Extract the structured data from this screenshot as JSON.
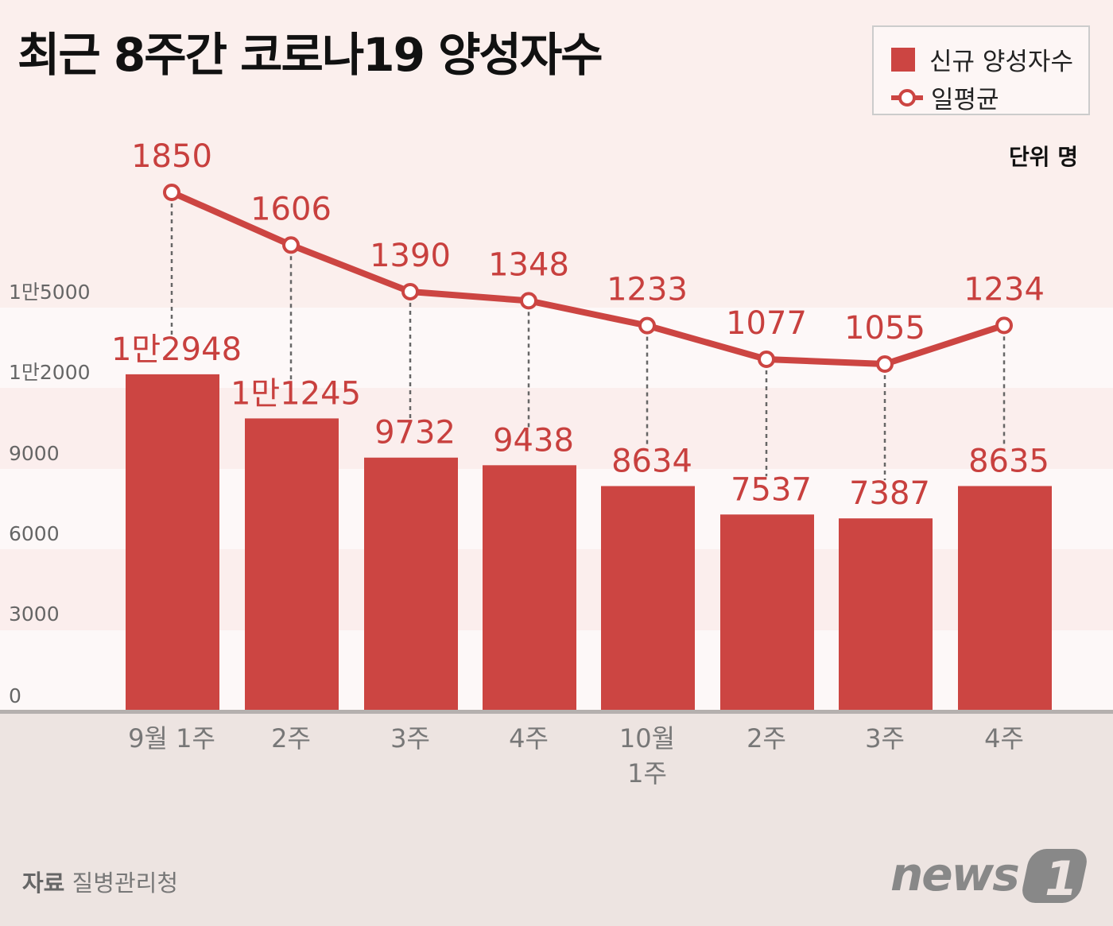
{
  "title": "최근 8주간 코로나19 양성자수",
  "unit_label": "단위 명",
  "source_label": "자료",
  "source_name": "질병관리청",
  "logo_text": "news1",
  "colors": {
    "bar": "#cc4542",
    "line": "#cc4542",
    "label": "#c8403e",
    "axis_text": "#666666"
  },
  "chart_data": {
    "type": "bar+line",
    "categories": [
      [
        "9월 1주"
      ],
      [
        "2주"
      ],
      [
        "3주"
      ],
      [
        "4주"
      ],
      [
        "10월",
        "1주"
      ],
      [
        "2주"
      ],
      [
        "3주"
      ],
      [
        "4주"
      ]
    ],
    "series": [
      {
        "name": "신규 양성자수",
        "type": "bar",
        "values": [
          12948,
          11245,
          9732,
          9438,
          8634,
          7537,
          7387,
          8635
        ],
        "labels": [
          "1만2948",
          "1만1245",
          "9732",
          "9438",
          "8634",
          "7537",
          "7387",
          "8635"
        ]
      },
      {
        "name": "일평균",
        "type": "line",
        "values": [
          1850,
          1606,
          1390,
          1348,
          1233,
          1077,
          1055,
          1234
        ],
        "labels": [
          "1850",
          "1606",
          "1390",
          "1348",
          "1233",
          "1077",
          "1055",
          "1234"
        ]
      }
    ],
    "yticks": [
      0,
      3000,
      6000,
      9000,
      12000,
      15000
    ],
    "ytick_labels": [
      "0",
      "3000",
      "6000",
      "9000",
      "1만2000",
      "1만5000"
    ],
    "ylim": [
      0,
      15000
    ],
    "legend": "top-right",
    "grid": "alternating bands"
  }
}
